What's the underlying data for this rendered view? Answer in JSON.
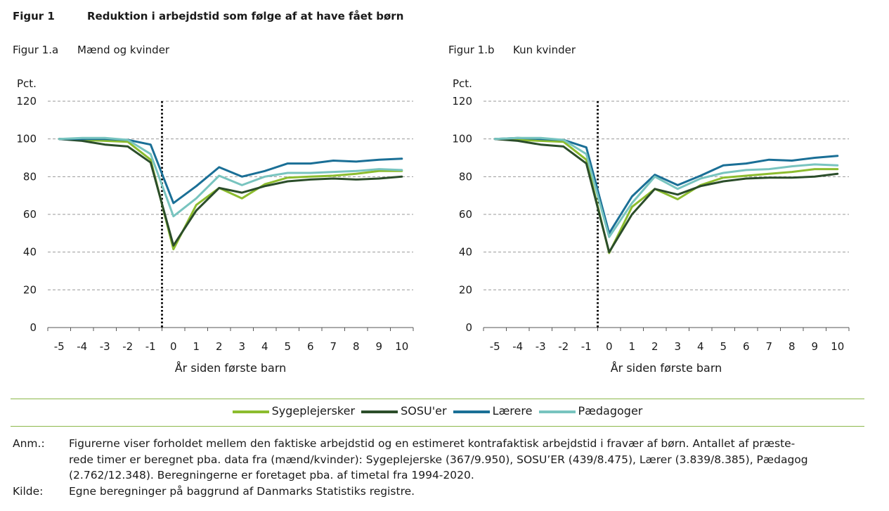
{
  "figure": {
    "number": "Figur 1",
    "title": "Reduktion i arbejdstid som følge af at have fået børn"
  },
  "panels": [
    {
      "number": "Figur 1.a",
      "title": "Mænd og kvinder"
    },
    {
      "number": "Figur 1.b",
      "title": "Kun kvinder"
    }
  ],
  "legend": {
    "items": [
      {
        "label": "Sygeplejersker",
        "color": "#8cbc2e"
      },
      {
        "label": "SOSU'er",
        "color": "#2b4d2a"
      },
      {
        "label": "Lærere",
        "color": "#1a6f96"
      },
      {
        "label": "Pædagoger",
        "color": "#78c4bf"
      }
    ]
  },
  "notes": {
    "anm_label": "Anm.:",
    "anm_line1": "Figurerne viser forholdet mellem den faktiske arbejdstid og en estimeret kontrafaktisk arbejdstid i fravær af børn. Antallet af præste-",
    "anm_line2": "rede timer er beregnet pba. data fra (mænd/kvinder): Sygeplejerske (367/9.950), SOSU’ER (439/8.475), Lærer (3.839/8.385), Pædagog",
    "anm_line3": "(2.762/12.348). Beregningerne er foretaget pba. af timetal fra 1994-2020.",
    "kilde_label": "Kilde:",
    "kilde_text": "Egne beregninger på baggrund af Danmarks Statistiks registre."
  },
  "chart_data": [
    {
      "type": "line",
      "title": "Mænd og kvinder",
      "ylabel": "Pct.",
      "xlabel": "År siden første barn",
      "x": [
        -5,
        -4,
        -3,
        -2,
        -1,
        0,
        1,
        2,
        3,
        4,
        5,
        6,
        7,
        8,
        9,
        10
      ],
      "ylim": [
        0,
        120
      ],
      "yticks": [
        0,
        20,
        40,
        60,
        80,
        100,
        120
      ],
      "grid": "horizontal dashed",
      "event_line_x": -0.5,
      "series": [
        {
          "name": "Sygeplejersker",
          "color": "#8cbc2e",
          "values": [
            100,
            99.5,
            99,
            98.5,
            89,
            41.5,
            65,
            74,
            68.5,
            76,
            79.5,
            80,
            80.5,
            81.5,
            83,
            83
          ]
        },
        {
          "name": "SOSU'er",
          "color": "#2b4d2a",
          "values": [
            100,
            99,
            97,
            96,
            87.5,
            43.5,
            62,
            74,
            71.5,
            75,
            77.5,
            78.5,
            79,
            78.5,
            79,
            80
          ]
        },
        {
          "name": "Lærere",
          "color": "#1a6f96",
          "values": [
            100,
            100,
            100,
            99.5,
            97,
            66,
            75,
            85,
            80,
            83,
            87,
            87,
            88.5,
            88,
            89,
            89.5
          ]
        },
        {
          "name": "Pædagoger",
          "color": "#78c4bf",
          "values": [
            100,
            100.5,
            100.5,
            99.5,
            92,
            59,
            68.5,
            80.5,
            75.5,
            80,
            82,
            82,
            82.5,
            83,
            84,
            83.5
          ]
        }
      ]
    },
    {
      "type": "line",
      "title": "Kun kvinder",
      "ylabel": "Pct.",
      "xlabel": "År siden første barn",
      "x": [
        -5,
        -4,
        -3,
        -2,
        -1,
        0,
        1,
        2,
        3,
        4,
        5,
        6,
        7,
        8,
        9,
        10
      ],
      "ylim": [
        0,
        120
      ],
      "yticks": [
        0,
        20,
        40,
        60,
        80,
        100,
        120
      ],
      "grid": "horizontal dashed",
      "event_line_x": -0.5,
      "series": [
        {
          "name": "Sygeplejersker",
          "color": "#8cbc2e",
          "values": [
            100,
            99.5,
            99,
            98.5,
            89,
            39.5,
            64,
            73.5,
            68,
            75.5,
            79.5,
            80.5,
            81.5,
            82.5,
            84,
            84
          ]
        },
        {
          "name": "SOSU'er",
          "color": "#2b4d2a",
          "values": [
            100,
            99,
            97,
            96,
            87,
            40,
            60,
            73.5,
            70.5,
            75,
            77.5,
            79,
            79.5,
            79.5,
            80,
            81.5
          ]
        },
        {
          "name": "Lærere",
          "color": "#1a6f96",
          "values": [
            100,
            100.5,
            100,
            99.5,
            95.5,
            50,
            69.5,
            81,
            75.5,
            80.5,
            86,
            87,
            89,
            88.5,
            90,
            91
          ]
        },
        {
          "name": "Pædagoger",
          "color": "#78c4bf",
          "values": [
            100,
            100.5,
            100.5,
            99.5,
            92,
            48,
            66,
            80,
            73.5,
            79,
            82,
            83.5,
            84,
            85.5,
            86.5,
            86
          ]
        }
      ]
    }
  ]
}
